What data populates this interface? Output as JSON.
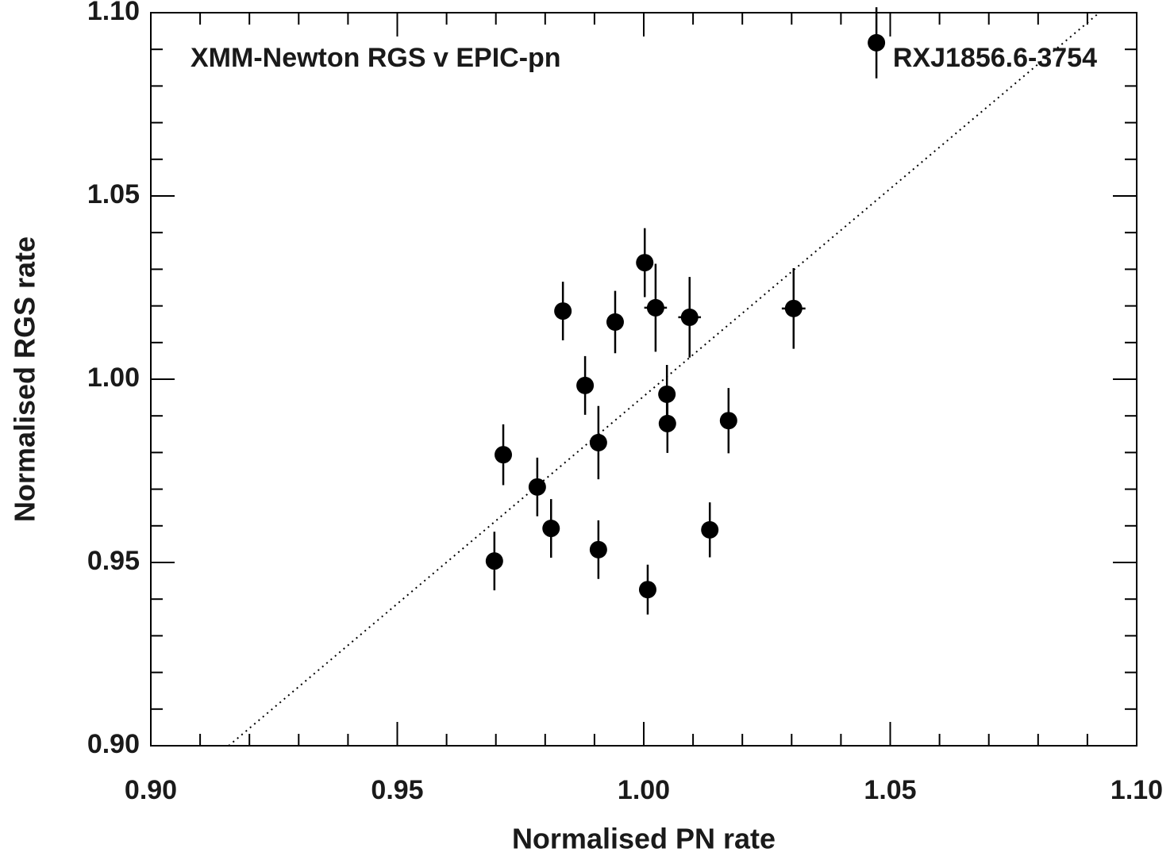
{
  "chart_data": {
    "type": "scatter",
    "title": "XMM-Newton RGS v EPIC-pn",
    "subtitle": "RXJ1856.6-3754",
    "x_label": "Normalised PN rate",
    "y_label": "Normalised RGS rate",
    "color": "#000000",
    "xlim": [
      0.9,
      1.1
    ],
    "ylim": [
      0.9,
      1.1
    ],
    "xticks": [
      {
        "value": 0.9,
        "label": "0.90"
      },
      0.95,
      {
        "value": 1.0,
        "label": "1.00"
      },
      1.05,
      {
        "value": 1.1,
        "label": "1.10"
      }
    ],
    "yticks": [
      {
        "value": 0.9,
        "label": "0.90"
      },
      0.95,
      {
        "value": 1.0,
        "label": "1.00"
      },
      1.05,
      {
        "value": 1.1,
        "label": "1.10"
      }
    ],
    "minor_xticks": [
      0.91,
      0.92,
      0.93,
      0.94,
      0.96,
      0.97,
      0.98,
      0.99,
      1.01,
      1.02,
      1.03,
      1.04,
      1.06,
      1.07,
      1.08,
      1.09
    ],
    "minor_yticks": [
      0.91,
      0.92,
      0.93,
      0.94,
      0.96,
      0.97,
      0.98,
      0.99,
      1.01,
      1.02,
      1.03,
      1.04,
      1.06,
      1.07,
      1.08,
      1.09
    ],
    "x": [
      0.9697,
      0.9715,
      0.9784,
      0.9812,
      0.9836,
      0.9881,
      0.9908,
      0.9908,
      0.9942,
      1.0002,
      1.0024,
      1.0047,
      1.0048,
      1.0008,
      1.0093,
      1.0134,
      1.0172,
      1.0304,
      1.0472
    ],
    "values": [
      0.9504,
      0.9794,
      0.9706,
      0.9593,
      1.0186,
      0.9983,
      0.9827,
      0.9535,
      1.0156,
      1.0318,
      1.0195,
      0.9959,
      0.9879,
      0.9426,
      1.0169,
      0.9589,
      0.9887,
      1.0193,
      1.0918
    ],
    "yerr": [
      0.008,
      0.0083,
      0.008,
      0.008,
      0.008,
      0.008,
      0.01,
      0.008,
      0.0085,
      0.0094,
      0.012,
      0.008,
      0.008,
      0.0068,
      0.011,
      0.0075,
      0.0089,
      0.011,
      0.0097
    ],
    "xerr": [
      0,
      0,
      0,
      0,
      0,
      0,
      0,
      0,
      0,
      0,
      0.0023,
      0,
      0,
      0,
      0.0023,
      0,
      0,
      0.0024,
      0
    ],
    "reference_line": {
      "x": [
        0.9158,
        1.0924
      ],
      "y": [
        0.9,
        1.1
      ]
    }
  }
}
